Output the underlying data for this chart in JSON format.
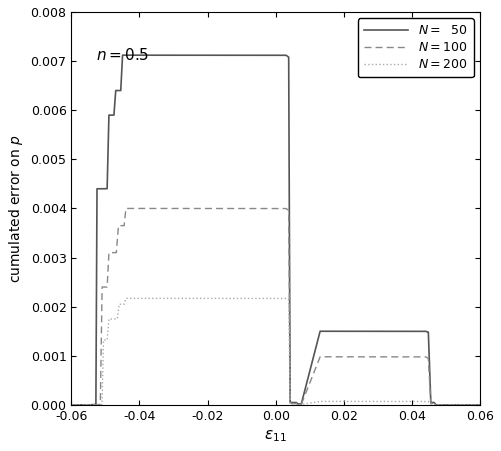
{
  "title": "",
  "xlabel": "$\\varepsilon_{11}$",
  "ylabel": "cumulated error on $p$",
  "annotation": "$n = 0.5$",
  "xlim": [
    -0.06,
    0.06
  ],
  "ylim": [
    0,
    0.008
  ],
  "color_N50": "#555555",
  "color_N100": "#888888",
  "color_N200": "#aaaaaa",
  "background": "#ffffff",
  "N50_pts": {
    "x": [
      -0.06,
      -0.055,
      -0.0528,
      -0.0525,
      -0.0495,
      -0.049,
      -0.0475,
      -0.047,
      -0.0455,
      -0.045,
      -0.0435,
      0.003,
      0.0038,
      0.0042,
      0.006,
      0.0065,
      0.0075,
      0.013,
      0.016,
      0.044,
      0.0448,
      0.0455,
      0.0465,
      0.047,
      0.06
    ],
    "y": [
      0.0,
      0.0,
      1e-05,
      0.0044,
      0.0044,
      0.0059,
      0.0059,
      0.0064,
      0.0064,
      0.00712,
      0.00712,
      0.00712,
      0.00708,
      5e-05,
      5e-05,
      2e-05,
      2e-05,
      0.0015,
      0.0015,
      0.0015,
      0.00148,
      5e-05,
      5e-05,
      0.0,
      0.0
    ]
  },
  "N100_pts": {
    "x": [
      -0.06,
      -0.055,
      -0.0515,
      -0.051,
      -0.0495,
      -0.049,
      -0.0468,
      -0.0462,
      -0.0445,
      -0.044,
      0.003,
      0.0038,
      0.0042,
      0.006,
      0.0065,
      0.0075,
      0.013,
      0.016,
      0.044,
      0.0448,
      0.0455,
      0.0465,
      0.047,
      0.06
    ],
    "y": [
      0.0,
      0.0,
      1e-05,
      0.0024,
      0.0024,
      0.0031,
      0.0031,
      0.00365,
      0.00365,
      0.004,
      0.004,
      0.00396,
      3e-05,
      3e-05,
      1e-05,
      1e-05,
      0.00098,
      0.00098,
      0.00098,
      0.00095,
      3e-05,
      3e-05,
      0.0,
      0.0
    ]
  },
  "N200_pts": {
    "x": [
      -0.06,
      -0.055,
      -0.051,
      -0.0506,
      -0.0495,
      -0.049,
      -0.0465,
      -0.046,
      -0.0445,
      -0.044,
      0.003,
      0.0038,
      0.0042,
      0.006,
      0.0065,
      0.0075,
      0.013,
      0.016,
      0.044,
      0.0448,
      0.0455,
      0.0465,
      0.047,
      0.06
    ],
    "y": [
      0.0,
      0.0,
      1e-05,
      0.00132,
      0.00132,
      0.00175,
      0.00175,
      0.00205,
      0.00205,
      0.00217,
      0.00217,
      0.00214,
      2e-05,
      2e-05,
      1e-05,
      1e-05,
      7.2e-05,
      7.2e-05,
      7.2e-05,
      7e-05,
      2e-05,
      2e-05,
      0.0,
      0.0
    ]
  }
}
